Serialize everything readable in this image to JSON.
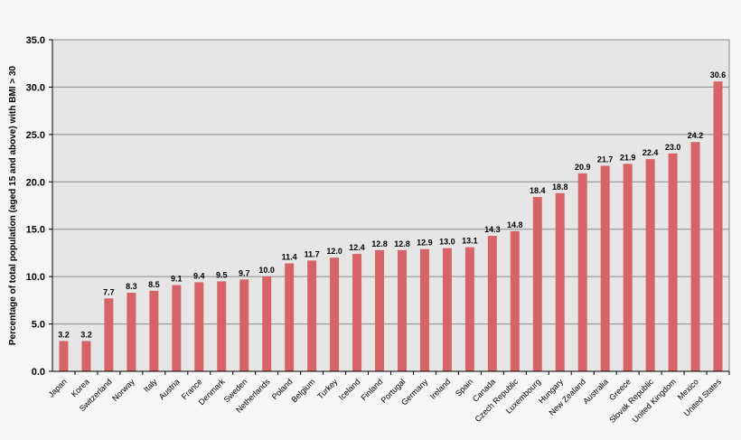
{
  "chart_data": {
    "type": "bar",
    "title": "",
    "xlabel": "",
    "ylabel": "Percentage of total population (aged 15 and above) with BMI > 30",
    "ylim": [
      0,
      35
    ],
    "yticks": [
      "0.0",
      "5.0",
      "10.0",
      "15.0",
      "20.0",
      "25.0",
      "30.0",
      "35.0"
    ],
    "grid": true,
    "categories": [
      "Japan",
      "Korea",
      "Switzerland",
      "Norway",
      "Italy",
      "Austria",
      "France",
      "Denmark",
      "Sweden",
      "Netherlands",
      "Poland",
      "Belgium",
      "Turkey",
      "Iceland",
      "Finland",
      "Portugal",
      "Germany",
      "Ireland",
      "Spain",
      "Canada",
      "Czech Republic",
      "Luxembourg",
      "Hungary",
      "New Zealand",
      "Australia",
      "Greece",
      "Slovak Republic",
      "United Kingdom",
      "Mexico",
      "United States"
    ],
    "values": [
      3.2,
      3.2,
      7.7,
      8.3,
      8.5,
      9.1,
      9.4,
      9.5,
      9.7,
      10.0,
      11.4,
      11.7,
      12.0,
      12.4,
      12.8,
      12.8,
      12.9,
      13.0,
      13.1,
      14.3,
      14.8,
      18.4,
      18.8,
      20.9,
      21.7,
      21.9,
      22.4,
      23.0,
      24.2,
      30.6
    ],
    "data_labels": [
      "3.2",
      "3.2",
      "7.7",
      "8.3",
      "8.5",
      "9.1",
      "9.4",
      "9.5",
      "9.7",
      "10.0",
      "11.4",
      "11.7",
      "12.0",
      "12.4",
      "12.8",
      "12.8",
      "12.9",
      "13.0",
      "13.1",
      "14.3",
      "14.8",
      "18.4",
      "18.8",
      "20.9",
      "21.7",
      "21.9",
      "22.4",
      "23.0",
      "24.2",
      "30.6"
    ],
    "colors": {
      "bar": "#d66466",
      "plot_bg": "#e6e6e6",
      "grid": "#8a8a8a",
      "axis": "#000000"
    }
  }
}
